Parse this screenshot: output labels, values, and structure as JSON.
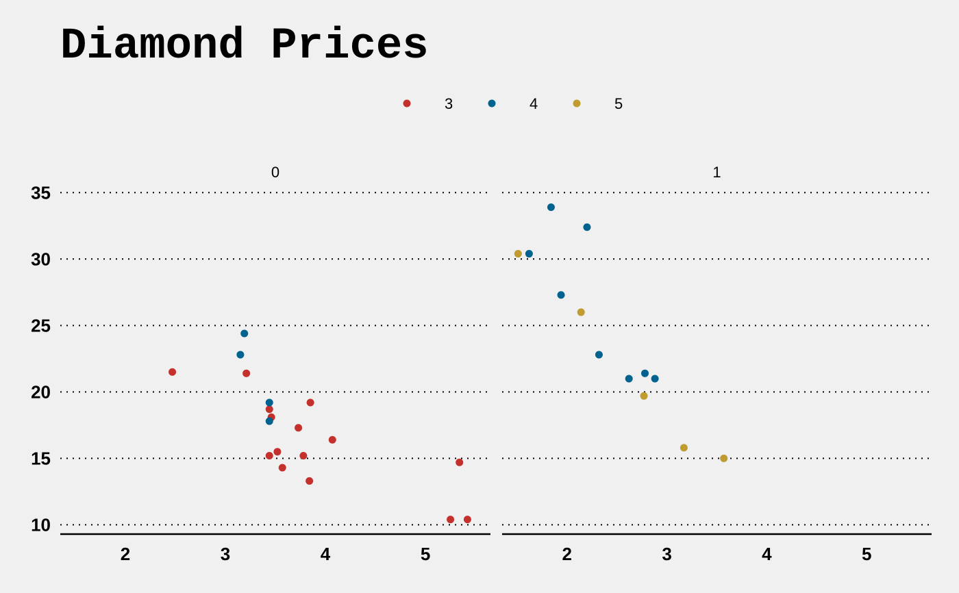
{
  "chart_data": {
    "type": "scatter",
    "title": "Diamond Prices",
    "xlabel": "",
    "ylabel": "",
    "xlim": [
      1.35,
      5.65
    ],
    "ylim": [
      9.3,
      36.2
    ],
    "x_ticks": [
      2,
      3,
      4,
      5
    ],
    "y_ticks": [
      10,
      15,
      20,
      25,
      30,
      35
    ],
    "grid": "horizontal dotted",
    "legend_position": "top-center",
    "facets": [
      "0",
      "1"
    ],
    "legend": [
      {
        "label": "3",
        "color": "#c4302b"
      },
      {
        "label": "4",
        "color": "#00628e"
      },
      {
        "label": "5",
        "color": "#bf9b30"
      }
    ],
    "series": [
      {
        "name": "3",
        "color": "#c4302b",
        "points": [
          {
            "facet": "0",
            "x": 2.47,
            "y": 21.5
          },
          {
            "facet": "0",
            "x": 3.21,
            "y": 21.4
          },
          {
            "facet": "0",
            "x": 3.44,
            "y": 18.7
          },
          {
            "facet": "0",
            "x": 3.46,
            "y": 18.1
          },
          {
            "facet": "0",
            "x": 3.85,
            "y": 19.2
          },
          {
            "facet": "0",
            "x": 3.73,
            "y": 17.3
          },
          {
            "facet": "0",
            "x": 4.07,
            "y": 16.4
          },
          {
            "facet": "0",
            "x": 3.44,
            "y": 15.2
          },
          {
            "facet": "0",
            "x": 3.52,
            "y": 15.5
          },
          {
            "facet": "0",
            "x": 3.78,
            "y": 15.2
          },
          {
            "facet": "0",
            "x": 3.57,
            "y": 14.3
          },
          {
            "facet": "0",
            "x": 3.84,
            "y": 13.3
          },
          {
            "facet": "0",
            "x": 5.34,
            "y": 14.7
          },
          {
            "facet": "0",
            "x": 5.25,
            "y": 10.4
          },
          {
            "facet": "0",
            "x": 5.42,
            "y": 10.4
          }
        ]
      },
      {
        "name": "4",
        "color": "#00628e",
        "points": [
          {
            "facet": "0",
            "x": 3.19,
            "y": 24.4
          },
          {
            "facet": "0",
            "x": 3.15,
            "y": 22.8
          },
          {
            "facet": "0",
            "x": 3.44,
            "y": 19.2
          },
          {
            "facet": "0",
            "x": 3.44,
            "y": 17.8
          },
          {
            "facet": "1",
            "x": 1.84,
            "y": 33.9
          },
          {
            "facet": "1",
            "x": 2.2,
            "y": 32.4
          },
          {
            "facet": "1",
            "x": 1.62,
            "y": 30.4
          },
          {
            "facet": "1",
            "x": 1.94,
            "y": 27.3
          },
          {
            "facet": "1",
            "x": 2.32,
            "y": 22.8
          },
          {
            "facet": "1",
            "x": 2.62,
            "y": 21.0
          },
          {
            "facet": "1",
            "x": 2.78,
            "y": 21.4
          },
          {
            "facet": "1",
            "x": 2.88,
            "y": 21.0
          }
        ]
      },
      {
        "name": "5",
        "color": "#bf9b30",
        "points": [
          {
            "facet": "1",
            "x": 1.51,
            "y": 30.4
          },
          {
            "facet": "1",
            "x": 2.14,
            "y": 26.0
          },
          {
            "facet": "1",
            "x": 2.77,
            "y": 19.7
          },
          {
            "facet": "1",
            "x": 3.17,
            "y": 15.8
          },
          {
            "facet": "1",
            "x": 3.57,
            "y": 15.0
          }
        ]
      }
    ]
  }
}
